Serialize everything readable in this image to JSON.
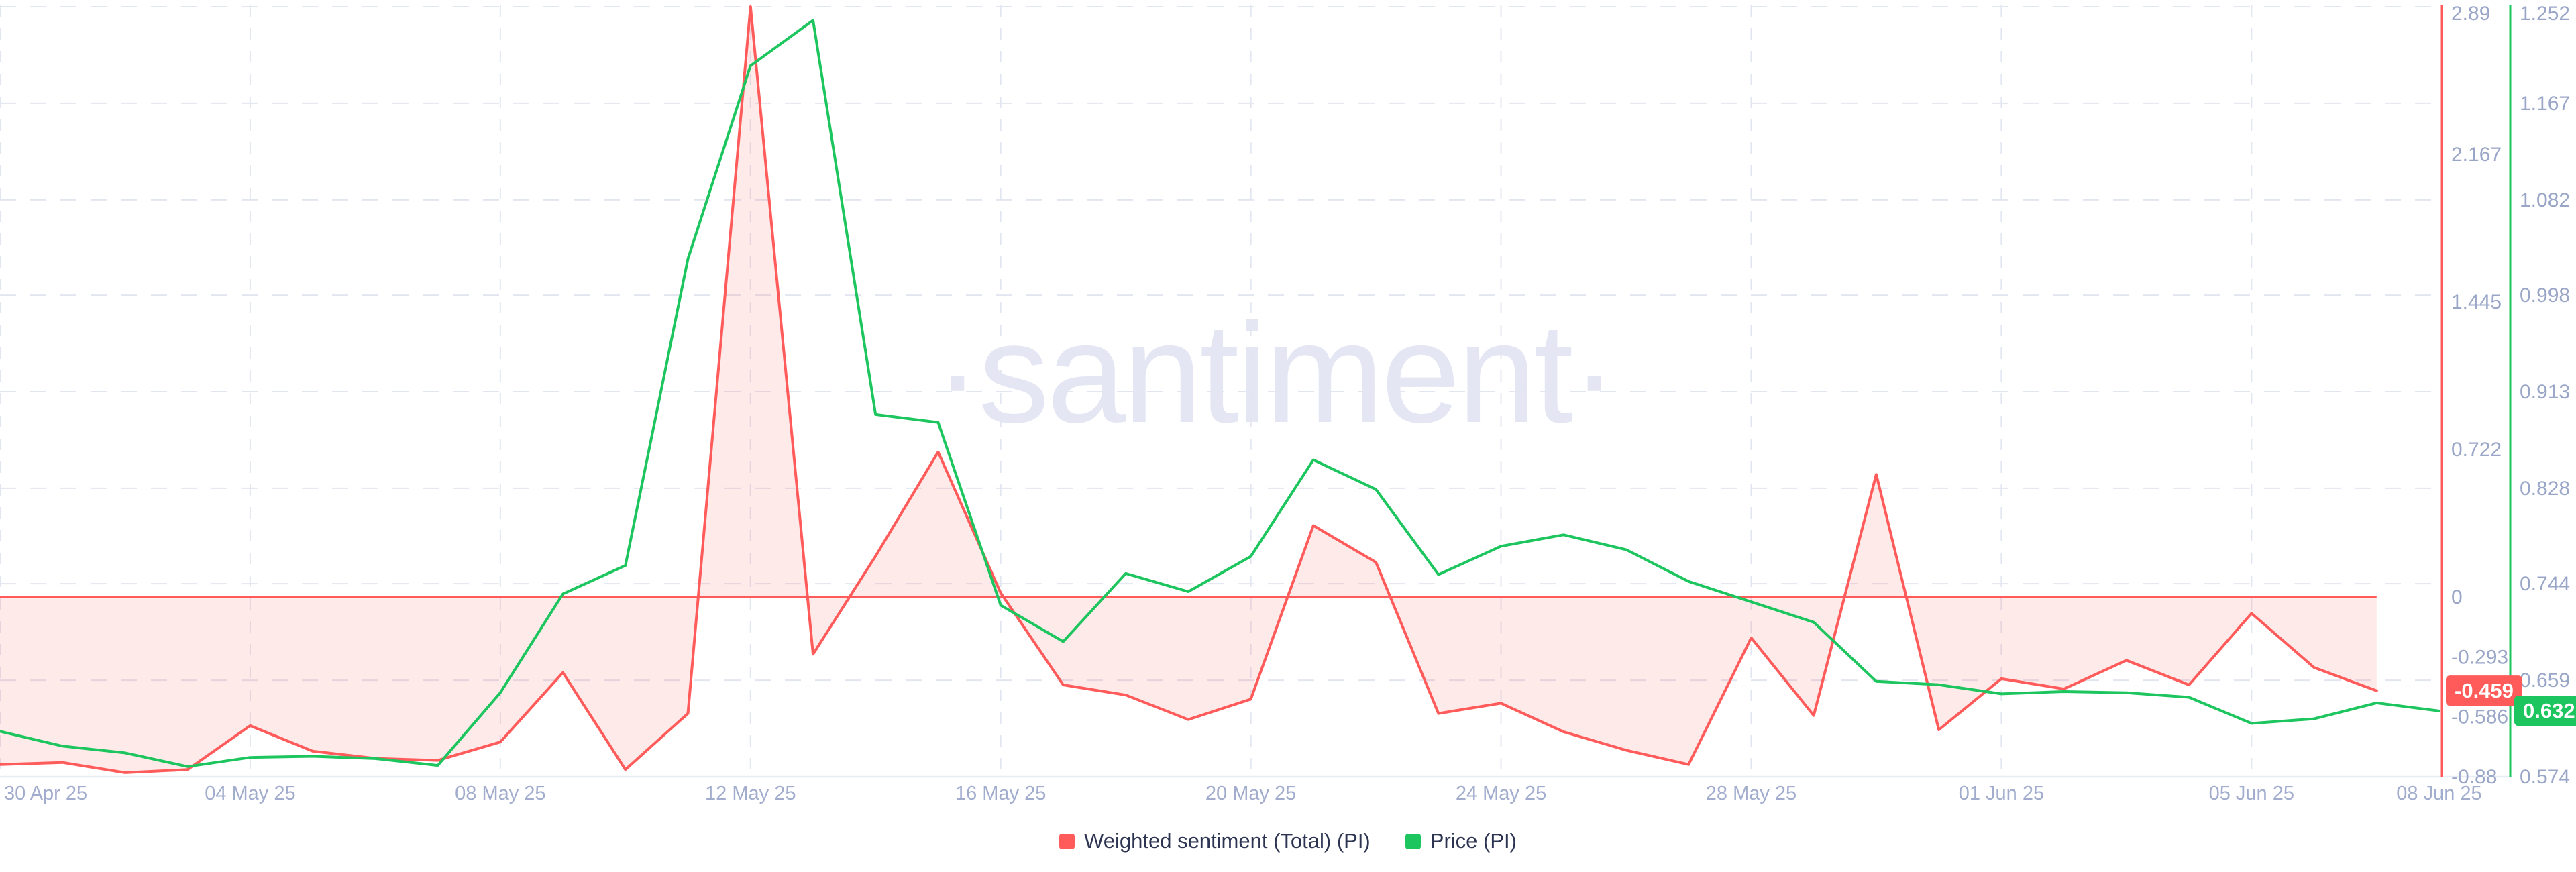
{
  "watermark": "·santiment·",
  "legend": {
    "items": [
      {
        "label": "Weighted sentiment (Total) (PI)",
        "color": "#ff5b5b"
      },
      {
        "label": "Price (PI)",
        "color": "#1dc55e"
      }
    ]
  },
  "colors": {
    "background": "#ffffff",
    "grid": "#e2e6f0",
    "axis_baseline": "#e8ecf5",
    "tick_text": "#9aa6c8",
    "x_tick_text": "#a2adce",
    "legend_text": "#2d3452",
    "sentiment": "#ff5b5b",
    "price": "#1dc55e",
    "sentiment_fill_opacity": 0.13,
    "watermark": "#e4e7f3"
  },
  "chart_data": {
    "type": "line",
    "title": "",
    "xlabel": "",
    "ylabel_right_inner": "Weighted sentiment (Total) (PI)",
    "ylabel_right_outer": "Price (PI)",
    "grid": true,
    "legend_position": "bottom",
    "x": [
      "30 Apr 25",
      "01 May 25",
      "02 May 25",
      "03 May 25",
      "04 May 25",
      "05 May 25",
      "06 May 25",
      "07 May 25",
      "08 May 25",
      "09 May 25",
      "10 May 25",
      "11 May 25",
      "12 May 25",
      "13 May 25",
      "14 May 25",
      "15 May 25",
      "16 May 25",
      "17 May 25",
      "18 May 25",
      "19 May 25",
      "20 May 25",
      "21 May 25",
      "22 May 25",
      "23 May 25",
      "24 May 25",
      "25 May 25",
      "26 May 25",
      "27 May 25",
      "28 May 25",
      "29 May 25",
      "30 May 25",
      "31 May 25",
      "01 Jun 25",
      "02 Jun 25",
      "03 Jun 25",
      "04 Jun 25",
      "05 Jun 25",
      "06 Jun 25",
      "07 Jun 25",
      "08 Jun 25"
    ],
    "x_ticks": [
      {
        "label": "30 Apr 25",
        "day": 0,
        "grid": true,
        "anchor": "start"
      },
      {
        "label": "04 May 25",
        "day": 4,
        "grid": true,
        "anchor": "middle"
      },
      {
        "label": "08 May 25",
        "day": 8,
        "grid": true,
        "anchor": "middle"
      },
      {
        "label": "12 May 25",
        "day": 12,
        "grid": true,
        "anchor": "middle"
      },
      {
        "label": "16 May 25",
        "day": 16,
        "grid": true,
        "anchor": "middle"
      },
      {
        "label": "20 May 25",
        "day": 20,
        "grid": true,
        "anchor": "middle"
      },
      {
        "label": "24 May 25",
        "day": 24,
        "grid": true,
        "anchor": "middle"
      },
      {
        "label": "28 May 25",
        "day": 28,
        "grid": true,
        "anchor": "middle"
      },
      {
        "label": "01 Jun 25",
        "day": 32,
        "grid": true,
        "anchor": "middle"
      },
      {
        "label": "05 Jun 25",
        "day": 36,
        "grid": true,
        "anchor": "middle"
      },
      {
        "label": "08 Jun 25",
        "day": 39,
        "grid": false,
        "anchor": "middle"
      }
    ],
    "axes": {
      "sentiment": {
        "side": "right-inner",
        "color": "#ff5b5b",
        "range": [
          -0.88,
          2.89
        ],
        "ticks": [
          "2.89",
          "2.167",
          "1.445",
          "0.722",
          "0",
          "-0.293",
          "-0.586",
          "-0.88"
        ],
        "zero_line": true,
        "last_value": -0.459,
        "last_value_label": "-0.459"
      },
      "price": {
        "side": "right-outer",
        "color": "#1dc55e",
        "range": [
          0.574,
          1.252
        ],
        "ticks": [
          "1.252",
          "1.167",
          "1.082",
          "0.998",
          "0.913",
          "0.828",
          "0.744",
          "0.659",
          "0.574"
        ],
        "zero_line": false,
        "last_value": 0.632,
        "last_value_label": "0.632"
      }
    },
    "series": [
      {
        "name": "Weighted sentiment (Total) (PI)",
        "axis": "sentiment",
        "color": "#ff5b5b",
        "fill_to_zero": true,
        "values": [
          -0.82,
          -0.81,
          -0.86,
          -0.845,
          -0.63,
          -0.755,
          -0.79,
          -0.8,
          -0.71,
          -0.37,
          -0.845,
          -0.57,
          2.89,
          -0.28,
          0.2,
          0.71,
          0.02,
          -0.43,
          -0.48,
          -0.6,
          -0.5,
          0.35,
          0.17,
          -0.57,
          -0.52,
          -0.66,
          -0.75,
          -0.82,
          -0.2,
          -0.58,
          0.6,
          -0.65,
          -0.4,
          -0.45,
          -0.31,
          -0.43,
          -0.08,
          -0.345,
          -0.459,
          null
        ]
      },
      {
        "name": "Price (PI)",
        "axis": "price",
        "color": "#1dc55e",
        "fill_to_zero": false,
        "values": [
          0.614,
          0.601,
          0.595,
          0.583,
          0.591,
          0.592,
          0.59,
          0.584,
          0.648,
          0.735,
          0.76,
          1.03,
          1.2,
          1.24,
          0.893,
          0.886,
          0.725,
          0.693,
          0.753,
          0.737,
          0.768,
          0.853,
          0.827,
          0.752,
          0.777,
          0.787,
          0.774,
          0.746,
          0.728,
          0.71,
          0.658,
          0.655,
          0.647,
          0.649,
          0.648,
          0.644,
          0.621,
          0.625,
          0.639,
          0.632
        ]
      }
    ]
  }
}
